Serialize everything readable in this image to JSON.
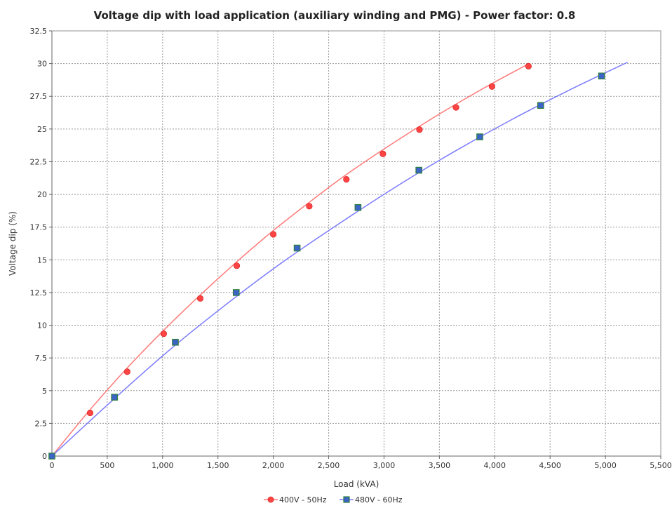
{
  "chart_data": {
    "type": "line",
    "title": "Voltage dip with load application (auxiliary winding and PMG) - Power factor: 0.8",
    "xlabel": "Load (kVA)",
    "ylabel": "Voltage dip (%)",
    "xlim": [
      0,
      5500
    ],
    "ylim": [
      0,
      32.5
    ],
    "x_ticks": [
      0,
      500,
      1000,
      1500,
      2000,
      2500,
      3000,
      3500,
      4000,
      4500,
      5000,
      5500
    ],
    "x_tick_labels": [
      "0",
      "500",
      "1,000",
      "1,500",
      "2,000",
      "2,500",
      "3,000",
      "3,500",
      "4,000",
      "4,500",
      "5,000",
      "5,500"
    ],
    "y_ticks": [
      0,
      2.5,
      5,
      7.5,
      10,
      12.5,
      15,
      17.5,
      20,
      22.5,
      25,
      27.5,
      30,
      32.5
    ],
    "y_tick_labels": [
      "0",
      "2.5",
      "5",
      "7.5",
      "10",
      "12.5",
      "15",
      "17.5",
      "20",
      "22.5",
      "25",
      "27.5",
      "30",
      "32.5"
    ],
    "grid": true,
    "legend_position": "bottom-center",
    "series": [
      {
        "name": "400V - 50Hz",
        "color": "#ff4444",
        "line_color": "#ff7a7a",
        "marker": "circle",
        "points": [
          [
            0,
            0
          ],
          [
            345,
            3.3
          ],
          [
            680,
            6.45
          ],
          [
            1010,
            9.35
          ],
          [
            1340,
            12.05
          ],
          [
            1670,
            14.55
          ],
          [
            2000,
            16.95
          ],
          [
            2325,
            19.1
          ],
          [
            2660,
            21.15
          ],
          [
            2990,
            23.1
          ],
          [
            3320,
            24.95
          ],
          [
            3650,
            26.65
          ],
          [
            3975,
            28.25
          ],
          [
            4305,
            29.8
          ]
        ],
        "curve": [
          [
            0,
            0
          ],
          [
            330,
            3.4
          ],
          [
            660,
            6.55
          ],
          [
            990,
            9.45
          ],
          [
            1320,
            12.15
          ],
          [
            1650,
            14.7
          ],
          [
            1980,
            17.1
          ],
          [
            2310,
            19.3
          ],
          [
            2640,
            21.4
          ],
          [
            2970,
            23.3
          ],
          [
            3300,
            25.1
          ],
          [
            3630,
            26.8
          ],
          [
            3960,
            28.4
          ],
          [
            4300,
            29.95
          ]
        ]
      },
      {
        "name": "480V - 60Hz",
        "color": "#3c64c8",
        "line_color": "#7b7bff",
        "marker": "square",
        "points": [
          [
            0,
            0
          ],
          [
            565,
            4.5
          ],
          [
            1115,
            8.7
          ],
          [
            1665,
            12.5
          ],
          [
            2215,
            15.9
          ],
          [
            2765,
            19.0
          ],
          [
            3315,
            21.85
          ],
          [
            3865,
            24.4
          ],
          [
            4415,
            26.8
          ],
          [
            4965,
            29.05
          ]
        ],
        "curve": [
          [
            0,
            0
          ],
          [
            520,
            4.05
          ],
          [
            1040,
            7.95
          ],
          [
            1560,
            11.5
          ],
          [
            2080,
            14.8
          ],
          [
            2600,
            17.8
          ],
          [
            3120,
            20.65
          ],
          [
            3640,
            23.3
          ],
          [
            4160,
            25.75
          ],
          [
            4680,
            28.0
          ],
          [
            5200,
            30.1
          ]
        ]
      }
    ]
  }
}
